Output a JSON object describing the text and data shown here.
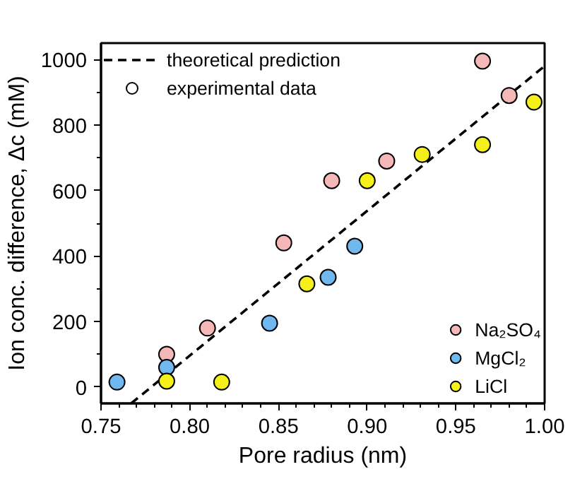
{
  "chart_data": {
    "type": "scatter",
    "xlabel": "Pore radius (nm)",
    "ylabel": "Ion conc. difference, Δc (mM)",
    "xlim": [
      0.75,
      1.0
    ],
    "xticks": [
      0.75,
      {
        "value": 0.8,
        "label": "0.80"
      },
      0.85,
      {
        "value": 0.9,
        "label": "0.90"
      },
      0.95,
      {
        "value": 1.0,
        "label": "1.00"
      }
    ],
    "ylim": [
      -50,
      1050
    ],
    "yticks": [
      0,
      200,
      400,
      600,
      800,
      1000
    ],
    "grid": false,
    "legend": "top left",
    "marker": "circle",
    "series": [
      {
        "name": "theoretical prediction",
        "type": "line",
        "line_style": "dashed",
        "marker": "none",
        "color": "#000000",
        "x": [
          0.767,
          1.0
        ],
        "values": [
          -50,
          980
        ]
      },
      {
        "name": "experimental data",
        "color": "#ffffff"
      },
      {
        "name": "Na₂SO₄",
        "color": "#f4b8b8",
        "x": [
          0.787,
          0.81,
          0.853,
          0.88,
          0.911,
          0.965,
          0.98
        ],
        "values": [
          100,
          180,
          440,
          630,
          690,
          995,
          890
        ]
      },
      {
        "name": "MgCl₂",
        "color": "#6fb8f0",
        "x": [
          0.759,
          0.787,
          0.845,
          0.878,
          0.893
        ],
        "values": [
          15,
          60,
          195,
          335,
          430
        ]
      },
      {
        "name": "LiCl",
        "color": "#f5ef1a",
        "x": [
          0.787,
          0.818,
          0.866,
          0.9,
          0.931,
          0.965,
          0.994
        ],
        "values": [
          18,
          15,
          315,
          630,
          710,
          740,
          870
        ]
      }
    ]
  }
}
